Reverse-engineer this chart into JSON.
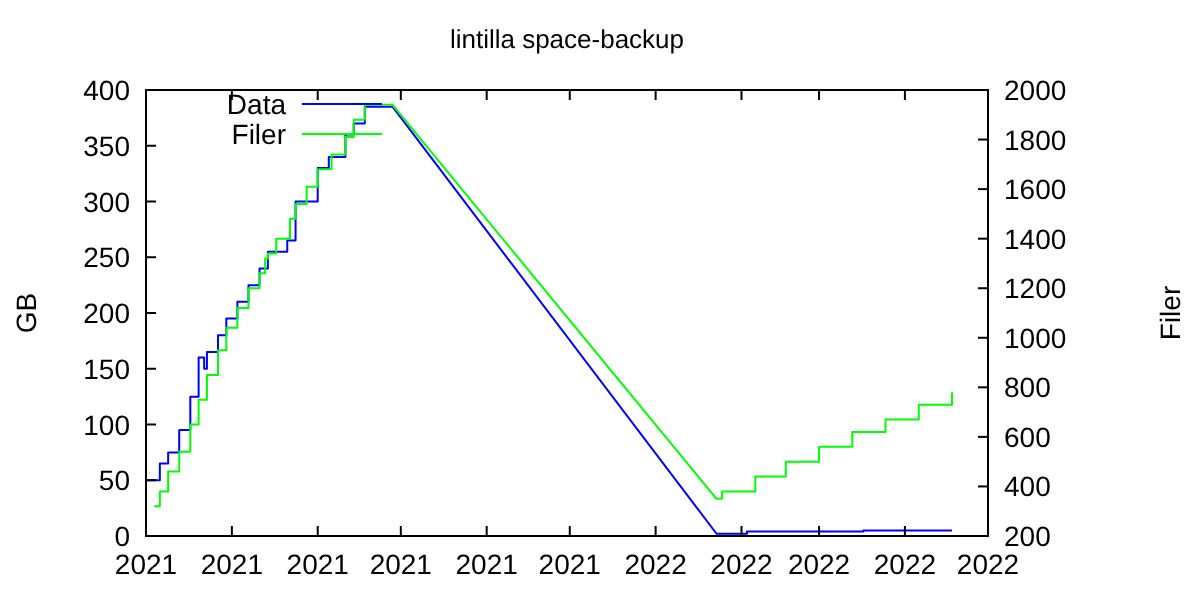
{
  "chart_data": {
    "type": "line",
    "title": "lintilla space-backup",
    "ylabel": "GB",
    "y2label": "Filer",
    "xlim": [
      "2021-07-01",
      "2022-05-01"
    ],
    "xticks": [
      {
        "value": "2021-07-01",
        "label": "2021"
      },
      {
        "value": "2021-08-01",
        "label": "2021"
      },
      {
        "value": "2021-09-01",
        "label": "2021"
      },
      {
        "value": "2021-10-01",
        "label": "2021"
      },
      {
        "value": "2021-11-01",
        "label": "2021"
      },
      {
        "value": "2021-12-01",
        "label": "2021"
      },
      {
        "value": "2022-01-01",
        "label": "2022"
      },
      {
        "value": "2022-02-01",
        "label": "2022"
      },
      {
        "value": "2022-03-01",
        "label": "2022"
      },
      {
        "value": "2022-04-01",
        "label": "2022"
      },
      {
        "value": "2022-05-01",
        "label": "2022"
      }
    ],
    "ylim": [
      0,
      400
    ],
    "yticks": [
      0,
      50,
      100,
      150,
      200,
      250,
      300,
      350,
      400
    ],
    "y2lim": [
      200,
      2000
    ],
    "y2ticks": [
      200,
      400,
      600,
      800,
      1000,
      1200,
      1400,
      1600,
      1800,
      2000
    ],
    "legend": "top left",
    "grid": false,
    "series": [
      {
        "name": "Data",
        "color": "#0000ff",
        "x": [
          "2021-07-01",
          "2021-07-06",
          "2021-07-06",
          "2021-07-09",
          "2021-07-09",
          "2021-07-13",
          "2021-07-13",
          "2021-07-17",
          "2021-07-17",
          "2021-07-20",
          "2021-07-20",
          "2021-07-22",
          "2021-07-22",
          "2021-07-23",
          "2021-07-23",
          "2021-07-27",
          "2021-07-27",
          "2021-07-30",
          "2021-07-30",
          "2021-08-03",
          "2021-08-03",
          "2021-08-07",
          "2021-08-07",
          "2021-08-11",
          "2021-08-11",
          "2021-08-14",
          "2021-08-14",
          "2021-08-21",
          "2021-08-21",
          "2021-08-24",
          "2021-08-24",
          "2021-09-01",
          "2021-09-01",
          "2021-09-05",
          "2021-09-05",
          "2021-09-11",
          "2021-09-11",
          "2021-09-14",
          "2021-09-14",
          "2021-09-18",
          "2021-09-18",
          "2021-09-28",
          "2022-01-23",
          "2022-02-03",
          "2022-02-03",
          "2022-03-17",
          "2022-03-17",
          "2022-04-18"
        ],
        "values": [
          50,
          50,
          65,
          65,
          75,
          75,
          95,
          95,
          125,
          125,
          160,
          160,
          150,
          150,
          165,
          165,
          180,
          180,
          195,
          195,
          210,
          210,
          225,
          225,
          240,
          240,
          255,
          255,
          265,
          265,
          300,
          300,
          330,
          330,
          340,
          340,
          360,
          360,
          370,
          370,
          385,
          385,
          2,
          2,
          4,
          4,
          5,
          5
        ]
      },
      {
        "name": "Filer",
        "color": "#00ff00",
        "axis": "y2",
        "x": [
          "2021-07-04",
          "2021-07-06",
          "2021-07-06",
          "2021-07-09",
          "2021-07-09",
          "2021-07-13",
          "2021-07-13",
          "2021-07-17",
          "2021-07-17",
          "2021-07-20",
          "2021-07-20",
          "2021-07-23",
          "2021-07-23",
          "2021-07-27",
          "2021-07-27",
          "2021-07-30",
          "2021-07-30",
          "2021-08-03",
          "2021-08-03",
          "2021-08-07",
          "2021-08-07",
          "2021-08-11",
          "2021-08-11",
          "2021-08-13",
          "2021-08-13",
          "2021-08-14",
          "2021-08-14",
          "2021-08-17",
          "2021-08-17",
          "2021-08-22",
          "2021-08-22",
          "2021-08-24",
          "2021-08-24",
          "2021-08-28",
          "2021-08-28",
          "2021-09-01",
          "2021-09-01",
          "2021-09-06",
          "2021-09-06",
          "2021-09-11",
          "2021-09-11",
          "2021-09-14",
          "2021-09-14",
          "2021-09-18",
          "2021-09-18",
          "2021-09-28",
          "2022-01-23",
          "2022-01-25",
          "2022-01-25",
          "2022-02-06",
          "2022-02-06",
          "2022-02-17",
          "2022-02-17",
          "2022-03-01",
          "2022-03-01",
          "2022-03-13",
          "2022-03-13",
          "2022-03-25",
          "2022-03-25",
          "2022-04-06",
          "2022-04-06",
          "2022-04-18",
          "2022-04-18"
        ],
        "values": [
          320,
          320,
          380,
          380,
          460,
          460,
          540,
          540,
          650,
          650,
          750,
          750,
          850,
          850,
          950,
          950,
          1040,
          1040,
          1120,
          1120,
          1200,
          1200,
          1260,
          1260,
          1320,
          1320,
          1340,
          1340,
          1400,
          1400,
          1480,
          1480,
          1540,
          1540,
          1610,
          1610,
          1680,
          1680,
          1740,
          1740,
          1810,
          1810,
          1880,
          1880,
          1940,
          1940,
          350,
          350,
          380,
          380,
          440,
          440,
          500,
          500,
          560,
          560,
          620,
          620,
          670,
          670,
          730,
          730,
          780
        ]
      }
    ]
  }
}
